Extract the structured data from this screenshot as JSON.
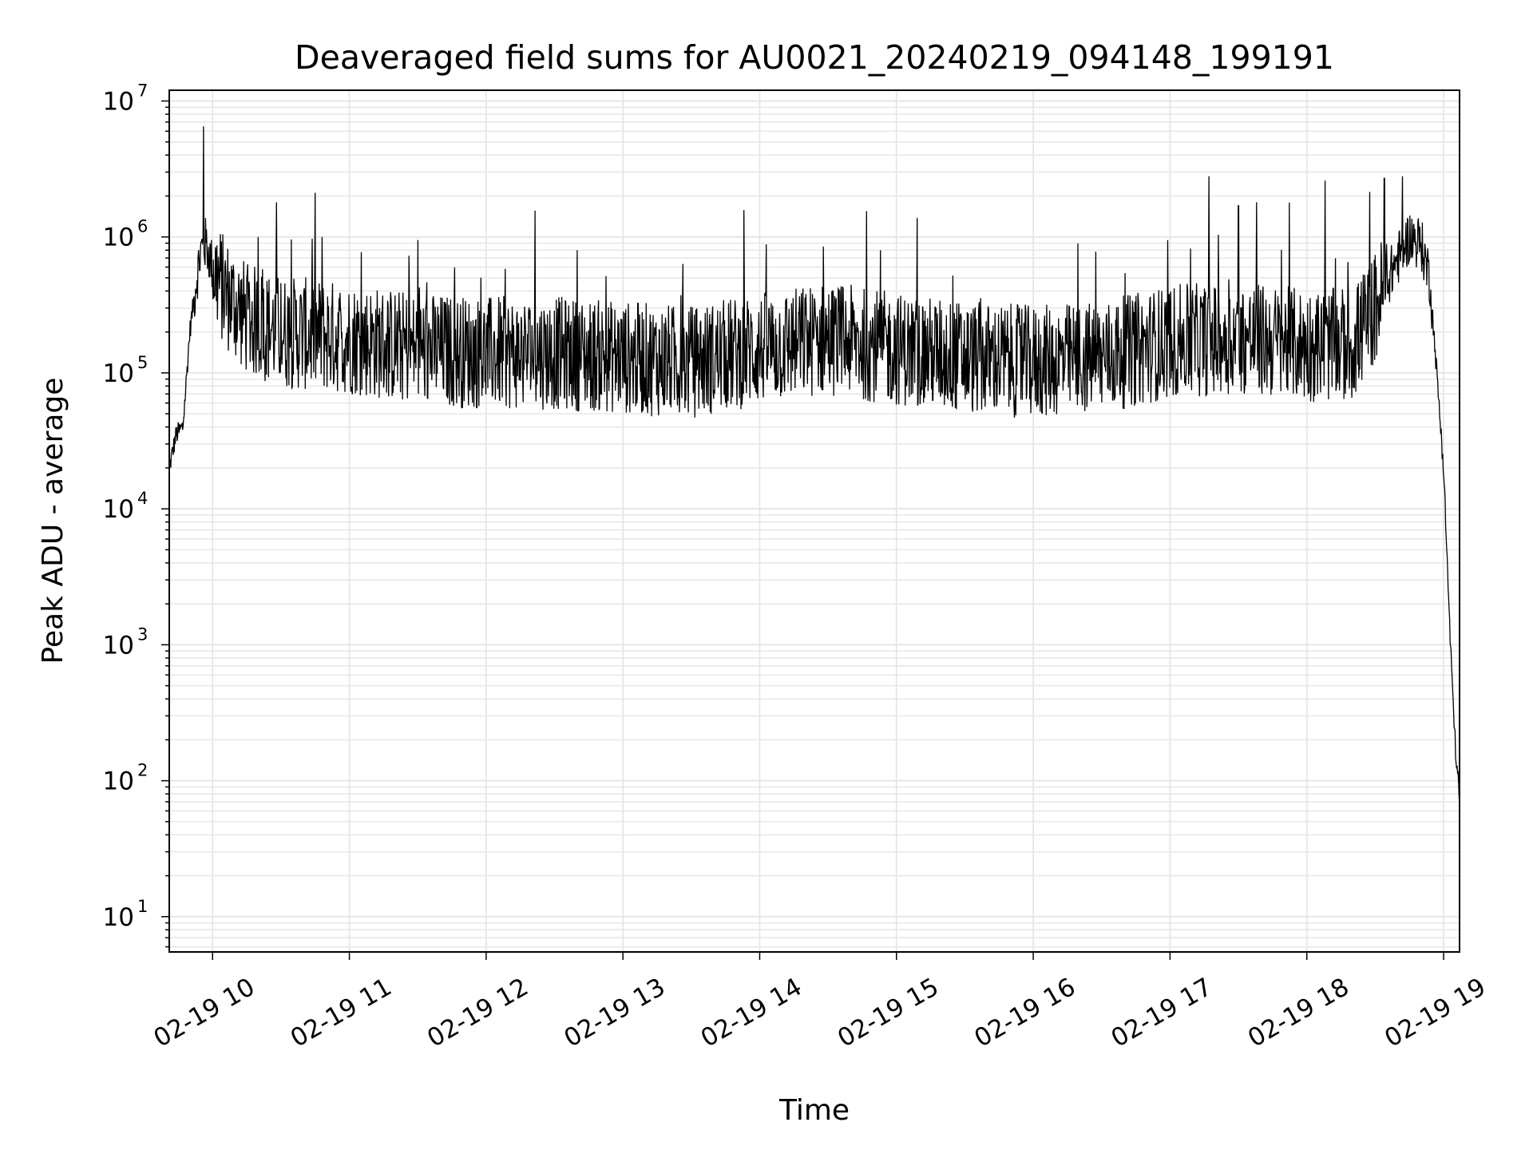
{
  "chart_data": {
    "type": "line",
    "title": "Deaveraged field sums for AU0021_20240219_094148_199191",
    "xlabel": "Time",
    "ylabel": "Peak ADU - average",
    "yscale": "log",
    "ylim": [
      5.5,
      12000000
    ],
    "xlim": [
      "2024-02-19 09:41",
      "2024-02-19 19:07"
    ],
    "grid": true,
    "line_color": "#000000",
    "grid_color": "#e6e6e6",
    "x_ticks": [
      "2024-02-19 10:00",
      "2024-02-19 11:00",
      "2024-02-19 12:00",
      "2024-02-19 13:00",
      "2024-02-19 14:00",
      "2024-02-19 15:00",
      "2024-02-19 16:00",
      "2024-02-19 17:00",
      "2024-02-19 18:00",
      "2024-02-19 19:00"
    ],
    "x_tick_labels": [
      "02-19 10",
      "02-19 11",
      "02-19 12",
      "02-19 13",
      "02-19 14",
      "02-19 15",
      "02-19 16",
      "02-19 17",
      "02-19 18",
      "02-19 19"
    ],
    "y_ticks": [
      10,
      100,
      1000,
      10000,
      100000,
      1000000,
      10000000
    ],
    "y_tick_labels": [
      {
        "base": "10",
        "exp": "1"
      },
      {
        "base": "10",
        "exp": "2"
      },
      {
        "base": "10",
        "exp": "3"
      },
      {
        "base": "10",
        "exp": "4"
      },
      {
        "base": "10",
        "exp": "5"
      },
      {
        "base": "10",
        "exp": "6"
      },
      {
        "base": "10",
        "exp": "7"
      }
    ],
    "series": [
      {
        "x": [
          "2024-02-19 09:41",
          "2024-02-19 09:44",
          "2024-02-19 09:47",
          "2024-02-19 09:50",
          "2024-02-19 09:53",
          "2024-02-19 09:55",
          "2024-02-19 09:57",
          "2024-02-19 10:00",
          "2024-02-19 10:05",
          "2024-02-19 10:15",
          "2024-02-19 10:30",
          "2024-02-19 11:00",
          "2024-02-19 11:30",
          "2024-02-19 12:00",
          "2024-02-19 12:30",
          "2024-02-19 13:00",
          "2024-02-19 13:30",
          "2024-02-19 14:00",
          "2024-02-19 14:30",
          "2024-02-19 15:00",
          "2024-02-19 15:30",
          "2024-02-19 16:00",
          "2024-02-19 16:30",
          "2024-02-19 17:00",
          "2024-02-19 17:30",
          "2024-02-19 18:00",
          "2024-02-19 18:20",
          "2024-02-19 18:30",
          "2024-02-19 18:38",
          "2024-02-19 18:45",
          "2024-02-19 18:50",
          "2024-02-19 18:54",
          "2024-02-19 18:57",
          "2024-02-19 19:00",
          "2024-02-19 19:03",
          "2024-02-19 19:05",
          "2024-02-19 19:07"
        ],
        "y": [
          20000,
          35000,
          40000,
          200000,
          500000,
          800000,
          900000,
          600000,
          400000,
          250000,
          200000,
          180000,
          150000,
          140000,
          140000,
          130000,
          120000,
          150000,
          180000,
          150000,
          130000,
          120000,
          130000,
          170000,
          180000,
          160000,
          160000,
          300000,
          600000,
          1000000,
          900000,
          500000,
          100000,
          20000,
          1000,
          200,
          70
        ]
      }
    ],
    "spikes": [
      {
        "x": "2024-02-19 09:56",
        "y": 6500000
      },
      {
        "x": "2024-02-19 10:28",
        "y": 1800000
      },
      {
        "x": "2024-02-19 10:20",
        "y": 1000000
      },
      {
        "x": "2024-02-19 10:48",
        "y": 1000000
      },
      {
        "x": "2024-02-19 11:30",
        "y": 950000
      },
      {
        "x": "2024-02-19 12:40",
        "y": 800000
      },
      {
        "x": "2024-02-19 14:28",
        "y": 850000
      },
      {
        "x": "2024-02-19 14:53",
        "y": 800000
      },
      {
        "x": "2024-02-19 17:17",
        "y": 2800000
      },
      {
        "x": "2024-02-19 17:30",
        "y": 1700000
      },
      {
        "x": "2024-02-19 17:38",
        "y": 1800000
      },
      {
        "x": "2024-02-19 18:08",
        "y": 2600000
      },
      {
        "x": "2024-02-19 18:34",
        "y": 2700000
      },
      {
        "x": "2024-02-19 18:42",
        "y": 2800000
      }
    ]
  }
}
